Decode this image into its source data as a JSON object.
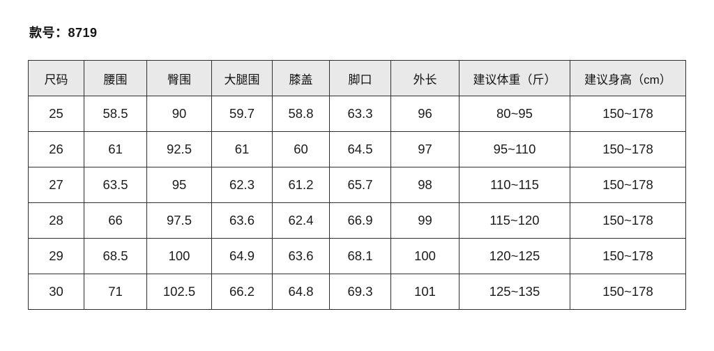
{
  "page": {
    "title": "款号：8719",
    "model_label": "款号",
    "model_number": "8719"
  },
  "table": {
    "headers": [
      "尺码",
      "腰围",
      "臀围",
      "大腿围",
      "膝盖",
      "脚口",
      "外长",
      "建议体重（斤）",
      "建议身高（cm）"
    ],
    "rows": [
      [
        "25",
        "58.5",
        "90",
        "59.7",
        "58.8",
        "63.3",
        "96",
        "80~95",
        "150~178"
      ],
      [
        "26",
        "61",
        "92.5",
        "61",
        "60",
        "64.5",
        "97",
        "95~110",
        "150~178"
      ],
      [
        "27",
        "63.5",
        "95",
        "62.3",
        "61.2",
        "65.7",
        "98",
        "110~115",
        "150~178"
      ],
      [
        "28",
        "66",
        "97.5",
        "63.6",
        "62.4",
        "66.9",
        "99",
        "115~120",
        "150~178"
      ],
      [
        "29",
        "68.5",
        "100",
        "64.9",
        "63.6",
        "68.1",
        "100",
        "120~125",
        "150~178"
      ],
      [
        "30",
        "71",
        "102.5",
        "66.2",
        "64.8",
        "69.3",
        "101",
        "125~135",
        "150~178"
      ]
    ]
  },
  "colors": {
    "header_background": "#e9e9e9",
    "border": "#2e2e2e",
    "text": "#1a1a1a",
    "page_background": "#ffffff"
  }
}
